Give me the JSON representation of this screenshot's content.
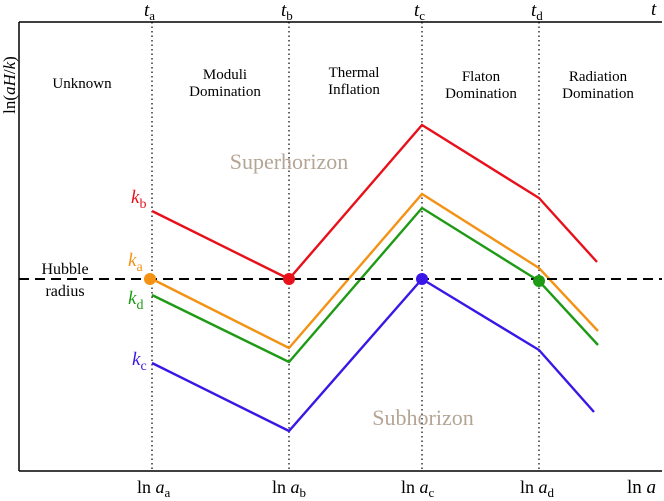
{
  "axes": {
    "y_label_prefix": "ln(",
    "y_label_var": "aH",
    "y_label_slash": "/",
    "y_label_k": "k",
    "y_label_suffix": ")",
    "x_label_prefix": "ln ",
    "x_label_var": "a",
    "t_label": "t"
  },
  "times": [
    {
      "sym": "t",
      "sub": "a",
      "ln": "ln ",
      "a": "a",
      "asub": "a"
    },
    {
      "sym": "t",
      "sub": "b",
      "ln": "ln ",
      "a": "a",
      "asub": "b"
    },
    {
      "sym": "t",
      "sub": "c",
      "ln": "ln ",
      "a": "a",
      "asub": "c"
    },
    {
      "sym": "t",
      "sub": "d",
      "ln": "ln ",
      "a": "a",
      "asub": "d"
    }
  ],
  "eras": [
    {
      "line1": "Unknown",
      "line2": ""
    },
    {
      "line1": "Moduli",
      "line2": "Domination"
    },
    {
      "line1": "Thermal",
      "line2": "Inflation"
    },
    {
      "line1": "Flaton",
      "line2": "Domination"
    },
    {
      "line1": "Radiation",
      "line2": "Domination"
    }
  ],
  "regions": {
    "super": "Superhorizon",
    "sub": "Subhorizon"
  },
  "hubble": {
    "line1": "Hubble",
    "line2": "radius"
  },
  "modes": [
    {
      "k": "k",
      "sub": "b",
      "color": "#e8101a"
    },
    {
      "k": "k",
      "sub": "a",
      "color": "#f39214"
    },
    {
      "k": "k",
      "sub": "d",
      "color": "#1e9a14"
    },
    {
      "k": "k",
      "sub": "c",
      "color": "#3a17e6"
    }
  ],
  "colors": {
    "region_text": "#b5a595",
    "axis": "#000000"
  }
}
